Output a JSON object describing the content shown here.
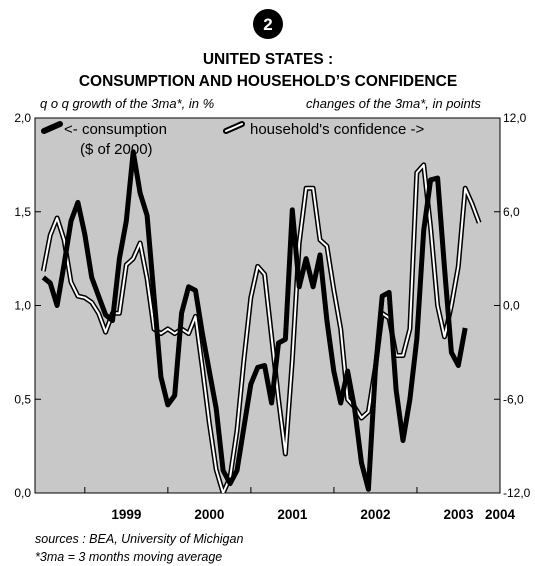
{
  "chart_data": {
    "type": "line",
    "number": "2",
    "title_line1": "UNITED STATES :",
    "title_line2": "CONSUMPTION AND HOUSEHOLD’S CONFIDENCE",
    "left_axis_label": "q o q growth of the 3ma*, in %",
    "right_axis_label": "changes of the 3ma*, in points",
    "left_ticks": [
      "2,0",
      "1,5",
      "1,0",
      "0,5",
      "0,0"
    ],
    "right_ticks": [
      "12,0",
      "6,0",
      "0,0",
      "-6,0",
      "-12,0"
    ],
    "ylim_left": [
      0,
      2
    ],
    "ylim_right": [
      -12,
      12
    ],
    "x_range": [
      1998.4,
      2004.0
    ],
    "year_labels": [
      "1999",
      "2000",
      "2001",
      "2002",
      "2003",
      "2004"
    ],
    "background_color": "#c8c8c8",
    "series": [
      {
        "name": "consumption",
        "name_line2": "($ of 2000)",
        "legend_prefix": "<- ",
        "axis": "left",
        "style": "thick-black",
        "color": "#000000",
        "x_start": 1998.5,
        "x_step": 0.0833,
        "values": [
          1.15,
          1.12,
          1.0,
          1.22,
          1.45,
          1.55,
          1.38,
          1.15,
          1.05,
          0.95,
          0.92,
          1.25,
          1.45,
          1.82,
          1.6,
          1.48,
          1.05,
          0.62,
          0.47,
          0.52,
          0.96,
          1.1,
          1.08,
          0.85,
          0.65,
          0.45,
          0.12,
          0.05,
          0.12,
          0.35,
          0.58,
          0.67,
          0.68,
          0.48,
          0.8,
          0.82,
          1.51,
          1.1,
          1.25,
          1.1,
          1.27,
          0.92,
          0.65,
          0.48,
          0.65,
          0.45,
          0.16,
          0.02,
          0.65,
          1.05,
          1.07,
          0.55,
          0.28,
          0.5,
          0.82,
          1.4,
          1.67,
          1.68,
          1.2,
          0.75,
          0.68,
          0.88
        ]
      },
      {
        "name": "household's confidence",
        "legend_suffix": " ->",
        "axis": "right",
        "style": "double-white",
        "color": "#ffffff",
        "x_start": 1998.5,
        "x_step": 0.0833,
        "values": [
          2.2,
          4.5,
          5.6,
          4.2,
          1.5,
          0.6,
          0.5,
          0.2,
          -0.5,
          -1.7,
          -0.5,
          -0.5,
          2.6,
          3.0,
          4.0,
          1.7,
          -1.5,
          -1.8,
          -1.5,
          -1.8,
          -1.5,
          -1.8,
          -0.7,
          -4.0,
          -7.5,
          -10.5,
          -12.0,
          -11.0,
          -8.0,
          -3.5,
          0.5,
          2.5,
          2.0,
          -2.0,
          -6.0,
          -9.5,
          -3.5,
          4.0,
          7.5,
          7.5,
          4.2,
          3.8,
          1.0,
          -1.5,
          -6.0,
          -6.5,
          -7.2,
          -6.8,
          -4.0,
          -0.5,
          -0.8,
          -3.2,
          -3.2,
          -1.5,
          8.5,
          9.0,
          5.0,
          0.0,
          -2.0,
          0.0,
          2.5,
          7.5,
          6.5,
          5.3
        ]
      }
    ],
    "grid": false,
    "legend_placement": "top"
  },
  "sources": "sources : BEA, University of Michigan",
  "footnote": "*3ma = 3 months moving average"
}
